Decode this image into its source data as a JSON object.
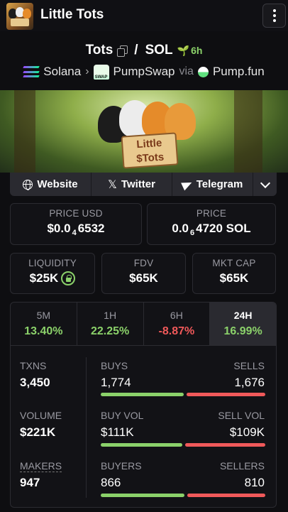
{
  "header": {
    "title": "Little Tots"
  },
  "pair": {
    "base": "Tots",
    "separator": "/",
    "quote": "SOL",
    "age": "6h"
  },
  "chain": {
    "name": "Solana",
    "dex": "PumpSwap",
    "via_label": "via",
    "launchpad": "Pump.fun"
  },
  "banner": {
    "sign_line1": "Little",
    "sign_line2": "$Tots"
  },
  "social": {
    "website": "Website",
    "twitter": "Twitter",
    "telegram": "Telegram"
  },
  "price_usd": {
    "label": "PRICE USD",
    "prefix": "$0.0",
    "zeros": "4",
    "digits": "6532"
  },
  "price_native": {
    "label": "PRICE",
    "prefix": "0.0",
    "zeros": "6",
    "digits": "4720 SOL"
  },
  "liquidity": {
    "label": "LIQUIDITY",
    "value": "$25K"
  },
  "fdv": {
    "label": "FDV",
    "value": "$65K"
  },
  "mktcap": {
    "label": "MKT CAP",
    "value": "$65K"
  },
  "timeframes": [
    {
      "name": "5M",
      "change": "13.40%",
      "dir": "up"
    },
    {
      "name": "1H",
      "change": "22.25%",
      "dir": "up"
    },
    {
      "name": "6H",
      "change": "-8.87%",
      "dir": "down"
    },
    {
      "name": "24H",
      "change": "16.99%",
      "dir": "up"
    }
  ],
  "stats": {
    "txns": {
      "label": "TXNS",
      "value": "3,450"
    },
    "volume": {
      "label": "VOLUME",
      "value": "$221K"
    },
    "makers": {
      "label": "MAKERS",
      "value": "947"
    },
    "buys": {
      "label": "BUYS",
      "value": "1,774"
    },
    "sells": {
      "label": "SELLS",
      "value": "1,676"
    },
    "buy_vol": {
      "label": "BUY VOL",
      "value": "$111K"
    },
    "sell_vol": {
      "label": "SELL VOL",
      "value": "$109K"
    },
    "buyers": {
      "label": "BUYERS",
      "value": "866"
    },
    "sellers": {
      "label": "SELLERS",
      "value": "810"
    },
    "buys_share": 0.514,
    "buy_vol_share": 0.505,
    "buyers_share": 0.517
  },
  "colors": {
    "positive": "#8bd16a",
    "negative": "#f0595a",
    "background": "#0e0e11"
  }
}
